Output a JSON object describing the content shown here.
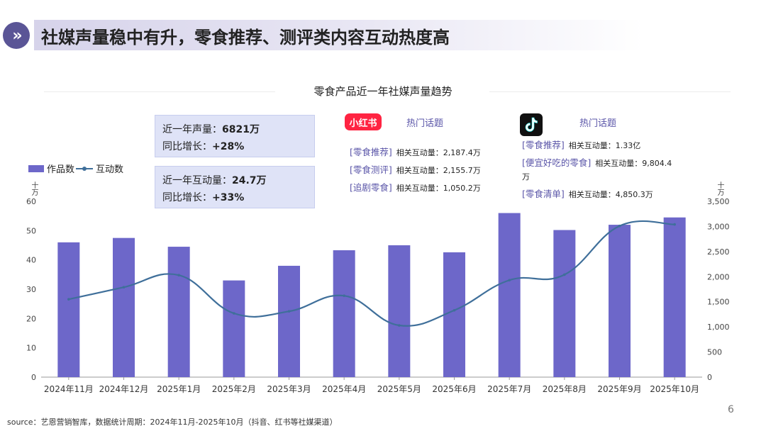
{
  "header": {
    "icon": "double-chevron-right-icon",
    "title": "社媒声量稳中有升，零食推荐、测评类内容互动热度高"
  },
  "stats": {
    "volume_label": "近一年声量：",
    "volume_value": "6821万",
    "volume_growth_label": "同比增长：",
    "volume_growth_value": "+28%",
    "interaction_label": "近一年互动量：",
    "interaction_value": "24.7万",
    "interaction_growth_label": "同比增长：",
    "interaction_growth_value": "+33%"
  },
  "xiaohongshu": {
    "logo_text": "小红书",
    "hot_label": "热门话题",
    "topics": [
      {
        "tag": "[零食推荐]",
        "label": "相关互动量：",
        "value": "2,187.4万"
      },
      {
        "tag": "[零食测评]",
        "label": "相关互动量：",
        "value": "2,155.7万"
      },
      {
        "tag": "[追剧零食]",
        "label": "相关互动量：",
        "value": "1,050.2万"
      }
    ]
  },
  "douyin": {
    "logo": "tiktok-icon",
    "hot_label": "热门话题",
    "topics": [
      {
        "tag": "[零食推荐]",
        "label": "相关互动量：",
        "value": "1.33亿"
      },
      {
        "tag": "[便宜好吃的零食]",
        "label": "相关互动量：",
        "value": "9,804.4",
        "wrap": "万"
      },
      {
        "tag": "[零食清单]",
        "label": "相关互动量：",
        "value": "4,850.3万"
      }
    ]
  },
  "chart_data": {
    "type": "bar",
    "title": "零食产品近一年社媒声量趋势",
    "categories": [
      "2024年11月",
      "2024年12月",
      "2025年1月",
      "2025年2月",
      "2025年3月",
      "2025年4月",
      "2025年5月",
      "2025年6月",
      "2025年7月",
      "2025年8月",
      "2025年9月",
      "2025年10月"
    ],
    "series": [
      {
        "name": "作品数",
        "type": "bar",
        "axis": "left",
        "color": "#6d67c9",
        "values": [
          46,
          47.5,
          44.5,
          33,
          38,
          43.3,
          45,
          42.6,
          56,
          50.2,
          52,
          54.5
        ]
      },
      {
        "name": "互动数",
        "type": "line",
        "axis": "right",
        "color": "#3f6f9a",
        "values": [
          1550,
          1790,
          2030,
          1270,
          1310,
          1620,
          1030,
          1330,
          1930,
          2040,
          3010,
          3040
        ]
      }
    ],
    "y_left": {
      "unit": "十万",
      "min": 0,
      "max": 60,
      "ticks": [
        "0",
        "10",
        "20",
        "30",
        "40",
        "50",
        "60"
      ]
    },
    "y_right": {
      "unit": "十万",
      "min": 0,
      "max": 3500,
      "ticks": [
        "0",
        "500",
        "1,000",
        "1,500",
        "2,000",
        "2,500",
        "3,000",
        "3,500"
      ]
    },
    "grid": false,
    "legend": "top-left"
  },
  "footer": {
    "source": "source：艺恩营销智库，数据统计周期：2024年11月-2025年10月（抖音、红书等社媒渠道）",
    "page": "6"
  }
}
